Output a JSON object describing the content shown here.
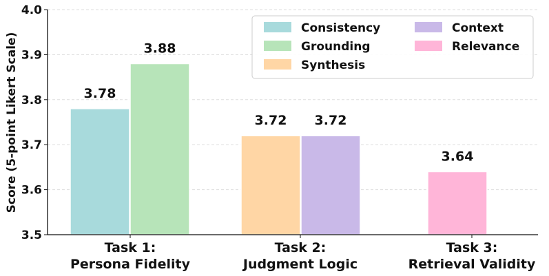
{
  "chart_data": {
    "type": "bar",
    "ylabel": "Score (5-point Likert Scale)",
    "xlabel": "",
    "ylim": [
      3.5,
      4.0
    ],
    "yticks": [
      "3.5",
      "3.6",
      "3.7",
      "3.8",
      "3.9",
      "4.0"
    ],
    "grid": "horizontal dashed",
    "legend_position": "top-right",
    "groups": [
      {
        "label_lines": [
          "Task 1:",
          "Persona Fidelity"
        ]
      },
      {
        "label_lines": [
          "Task 2:",
          "Judgment Logic"
        ]
      },
      {
        "label_lines": [
          "Task 3:",
          "Retrieval Validity"
        ]
      }
    ],
    "series": [
      {
        "name": "Consistency",
        "color": "#a8dadc",
        "group": 0,
        "value": 3.78,
        "label": "3.78"
      },
      {
        "name": "Grounding",
        "color": "#b7e4b9",
        "group": 0,
        "value": 3.88,
        "label": "3.88"
      },
      {
        "name": "Synthesis",
        "color": "#ffd6a5",
        "group": 1,
        "value": 3.72,
        "label": "3.72"
      },
      {
        "name": "Context",
        "color": "#c9b9e8",
        "group": 1,
        "value": 3.72,
        "label": "3.72"
      },
      {
        "name": "Relevance",
        "color": "#ffb5d8",
        "group": 2,
        "value": 3.64,
        "label": "3.64"
      }
    ]
  }
}
